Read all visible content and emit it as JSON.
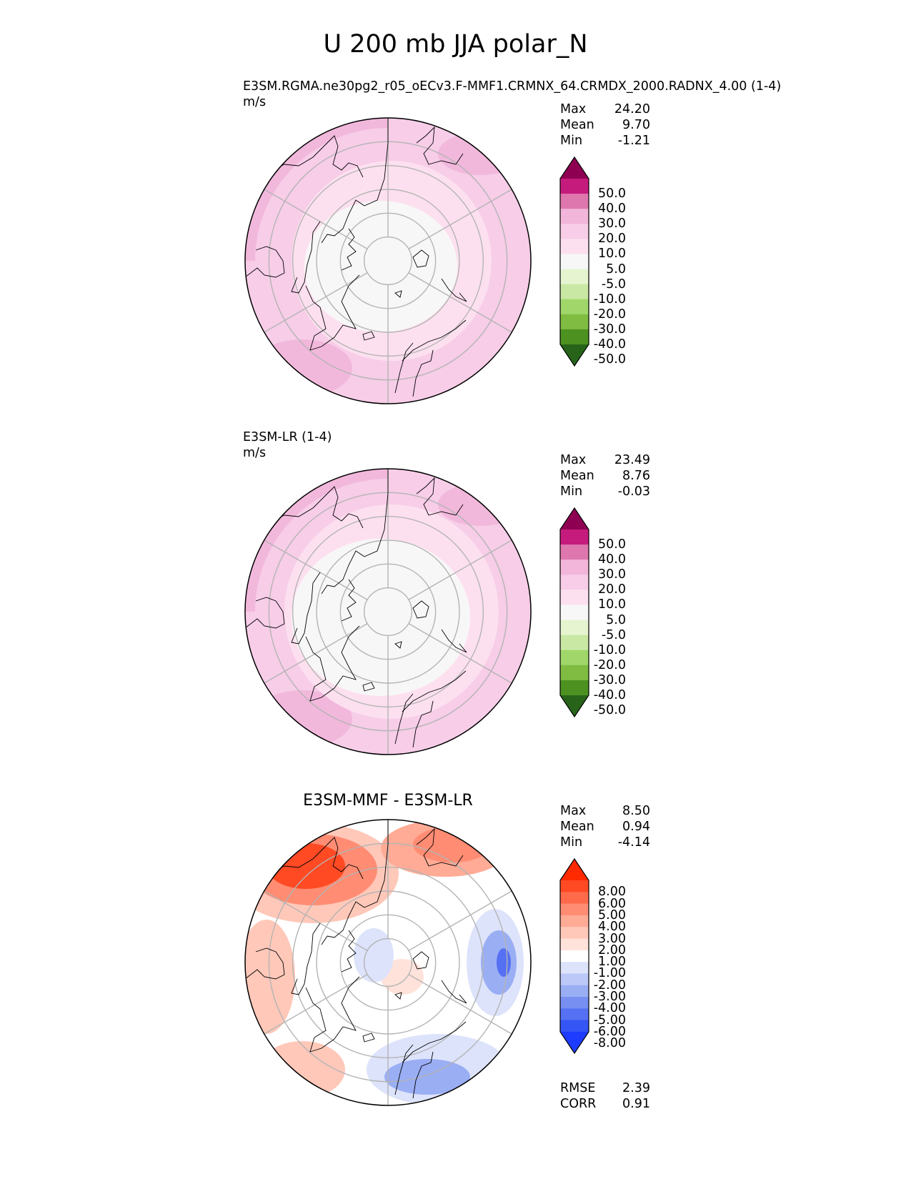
{
  "title": "U 200 mb JJA polar_N",
  "panels": [
    {
      "subtitle": "E3SM.RGMA.ne30pg2_r05_oECv3.F-MMF1.CRMNX_64.CRMDX_2000.RADNX_4.00 (1-4)",
      "units": "m/s",
      "stats": [
        {
          "label": "Max",
          "value": "24.20"
        },
        {
          "label": "Mean",
          "value": "9.70"
        },
        {
          "label": "Min",
          "value": "-1.21"
        }
      ]
    },
    {
      "subtitle": "E3SM-LR (1-4)",
      "units": "m/s",
      "stats": [
        {
          "label": "Max",
          "value": "23.49"
        },
        {
          "label": "Mean",
          "value": "8.76"
        },
        {
          "label": "Min",
          "value": "-0.03"
        }
      ]
    },
    {
      "title": "E3SM-MMF - E3SM-LR",
      "stats": [
        {
          "label": "Max",
          "value": "8.50"
        },
        {
          "label": "Mean",
          "value": "0.94"
        },
        {
          "label": "Min",
          "value": "-4.14"
        }
      ],
      "metrics": [
        {
          "label": "RMSE",
          "value": "2.39"
        },
        {
          "label": "CORR",
          "value": "0.91"
        }
      ]
    }
  ],
  "colorbars": {
    "field": {
      "ticks": [
        "50.0",
        "40.0",
        "30.0",
        "20.0",
        "10.0",
        "5.0",
        "-5.0",
        "-10.0",
        "-20.0",
        "-30.0",
        "-40.0",
        "-50.0"
      ],
      "colors": [
        "#8e0152",
        "#c51b7d",
        "#de77ae",
        "#f1b6da",
        "#f7cde8",
        "#fde0ef",
        "#f7f7f7",
        "#e6f5d0",
        "#c9e8a4",
        "#a1d76a",
        "#7fbc41",
        "#4d9221",
        "#276419"
      ]
    },
    "diff": {
      "ticks": [
        "8.00",
        "6.00",
        "5.00",
        "4.00",
        "3.00",
        "2.00",
        "1.00",
        "-1.00",
        "-2.00",
        "-3.00",
        "-4.00",
        "-5.00",
        "-6.00",
        "-8.00"
      ],
      "colors": [
        "#ff2a00",
        "#ff4a24",
        "#ff6a4a",
        "#ff8c73",
        "#ffab96",
        "#ffc8b9",
        "#ffe2da",
        "#ffffff",
        "#dde3fb",
        "#bcc8f7",
        "#9aaef4",
        "#788ff2",
        "#5570f3",
        "#3555f5",
        "#1d3cff"
      ]
    }
  },
  "map_style": {
    "field_bands_ref": [
      {
        "lat_from": 30,
        "lat_to": 34,
        "value": "20-30"
      },
      {
        "lat_from": 34,
        "lat_to": 50,
        "value": "10-20"
      },
      {
        "lat_from": 50,
        "lat_to": 65,
        "value": "5-10"
      },
      {
        "lat_from": 65,
        "lat_to": 90,
        "value": "-5-5"
      }
    ],
    "graticule_color": "#b4b4b4",
    "coast_color": "#000000"
  }
}
